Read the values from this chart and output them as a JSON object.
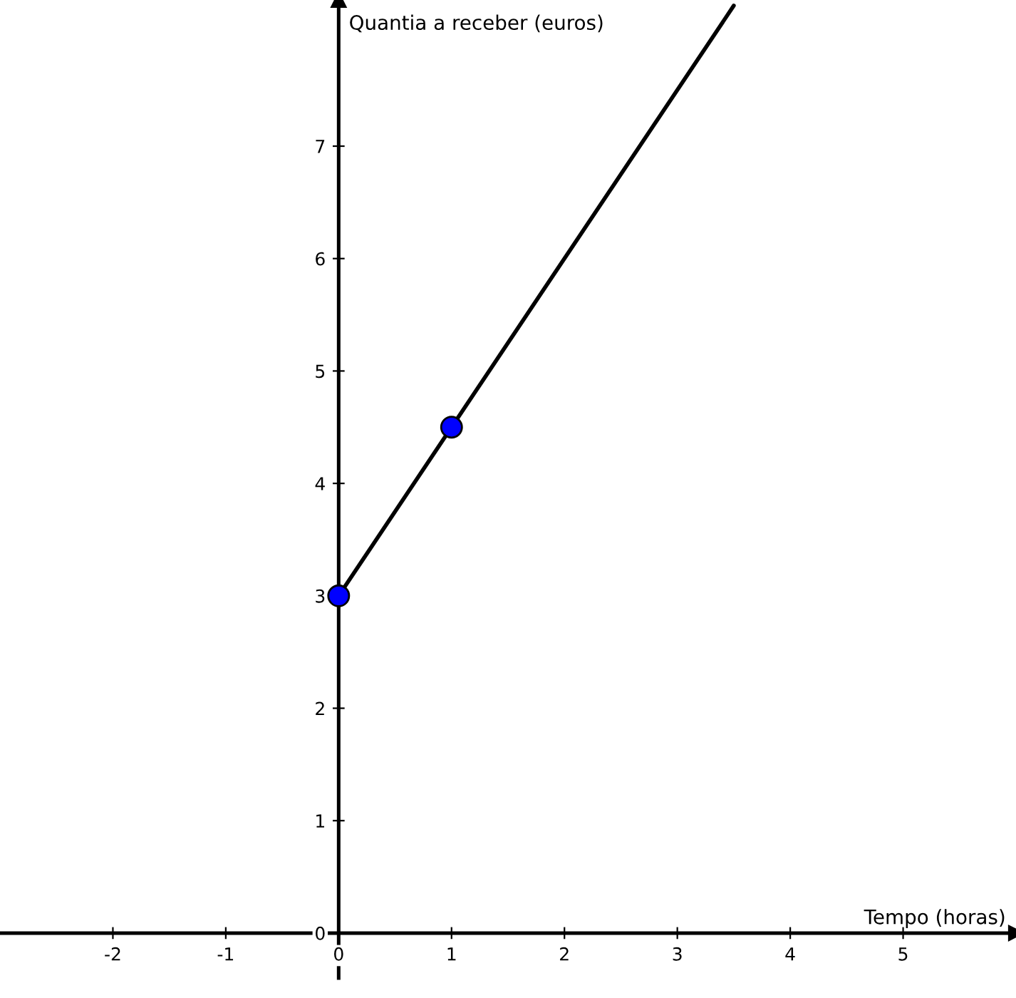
{
  "chart_data": {
    "type": "line",
    "xlabel": "Tempo (horas)",
    "ylabel": "Quantia a receber (euros)",
    "xlim": [
      -3,
      6
    ],
    "ylim": [
      -0.4,
      8.3
    ],
    "xticks": [
      -2,
      -1,
      0,
      1,
      2,
      3,
      4,
      5
    ],
    "yticks": [
      0,
      1,
      2,
      3,
      4,
      5,
      6,
      7
    ],
    "grid": false,
    "legend": false,
    "series": [
      {
        "color": "#000000",
        "x": [
          0,
          3.5
        ],
        "values": [
          3,
          8.25
        ],
        "marker": "none"
      },
      {
        "type": "scatter",
        "color": "#0000ff",
        "x": [
          0,
          1
        ],
        "values": [
          3,
          4.5
        ],
        "marker": "circle"
      }
    ]
  }
}
